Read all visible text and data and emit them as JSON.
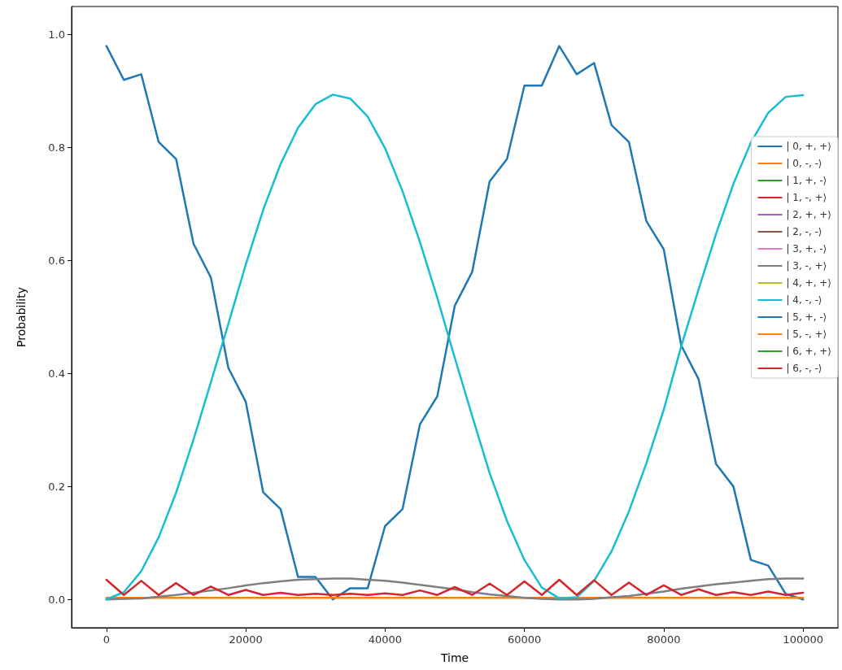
{
  "chart_data": {
    "type": "line",
    "xlabel": "Time",
    "ylabel": "Probability",
    "x": [
      0,
      2500,
      5000,
      7500,
      10000,
      12500,
      15000,
      17500,
      20000,
      22500,
      25000,
      27500,
      30000,
      32500,
      35000,
      37500,
      40000,
      42500,
      45000,
      47500,
      50000,
      52500,
      55000,
      57500,
      60000,
      62500,
      65000,
      67500,
      70000,
      72500,
      75000,
      77500,
      80000,
      82500,
      85000,
      87500,
      90000,
      92500,
      95000,
      97500,
      100000
    ],
    "xlim": [
      -5000,
      105000
    ],
    "xticks": [
      0,
      20000,
      40000,
      60000,
      80000,
      100000
    ],
    "ylim": [
      -0.05,
      1.05
    ],
    "yticks": [
      {
        "value": 0,
        "label": "0.0"
      },
      0.2,
      0.4,
      0.6,
      0.8,
      {
        "value": 1,
        "label": "1.0"
      }
    ],
    "grid": false,
    "legend": "right",
    "marker": "none",
    "line_style": "solid",
    "series": [
      {
        "name": "| 0, +, +⟩",
        "color": "#1f77b4",
        "values": [
          0.98,
          0.92,
          0.93,
          0.81,
          0.78,
          0.63,
          0.57,
          0.41,
          0.35,
          0.19,
          0.16,
          0.04,
          0.04,
          0.0,
          0.02,
          0.02,
          0.13,
          0.16,
          0.31,
          0.36,
          0.52,
          0.58,
          0.74,
          0.78,
          0.91,
          0.91,
          0.98,
          0.93,
          0.95,
          0.84,
          0.81,
          0.67,
          0.62,
          0.45,
          0.39,
          0.24,
          0.2,
          0.07,
          0.06,
          0.01,
          0.0
        ]
      },
      {
        "name": "| 0, -, -⟩",
        "color": "#ff7f0e",
        "values": [
          0.003,
          0.003,
          0.003,
          0.003,
          0.003,
          0.003,
          0.003,
          0.003,
          0.003,
          0.003,
          0.003,
          0.003,
          0.003,
          0.003,
          0.003,
          0.003,
          0.003,
          0.003,
          0.003,
          0.003,
          0.003,
          0.003,
          0.003,
          0.003,
          0.003,
          0.003,
          0.003,
          0.003,
          0.003,
          0.003,
          0.003,
          0.003,
          0.003,
          0.003,
          0.003,
          0.003,
          0.003,
          0.003,
          0.003,
          0.003,
          0.003
        ]
      },
      {
        "name": "| 1, +, -⟩",
        "color": "#2ca02c",
        "values": [
          null,
          null,
          null,
          null,
          null,
          null,
          null,
          null,
          null,
          null,
          null,
          null,
          null,
          null,
          null,
          null,
          null,
          null,
          null,
          null,
          null,
          null,
          null,
          null,
          null,
          null,
          null,
          null,
          null,
          null,
          null,
          null,
          null,
          null,
          null,
          null,
          null,
          null,
          null,
          null,
          null
        ]
      },
      {
        "name": "| 1, -, +⟩",
        "color": "#d62728",
        "values": [
          null,
          null,
          null,
          null,
          null,
          null,
          null,
          null,
          null,
          null,
          null,
          null,
          null,
          null,
          null,
          null,
          null,
          null,
          null,
          null,
          null,
          null,
          null,
          null,
          null,
          null,
          null,
          null,
          null,
          null,
          null,
          null,
          null,
          null,
          null,
          null,
          null,
          null,
          null,
          null,
          null
        ]
      },
      {
        "name": "| 2, +, +⟩",
        "color": "#9467bd",
        "values": [
          null,
          null,
          null,
          null,
          null,
          null,
          null,
          null,
          null,
          null,
          null,
          null,
          null,
          null,
          null,
          null,
          null,
          null,
          null,
          null,
          null,
          null,
          null,
          null,
          null,
          null,
          null,
          null,
          null,
          null,
          null,
          null,
          null,
          null,
          null,
          null,
          null,
          null,
          null,
          null,
          null
        ]
      },
      {
        "name": "| 2, -, -⟩",
        "color": "#8c564b",
        "values": [
          null,
          null,
          null,
          null,
          null,
          null,
          null,
          null,
          null,
          null,
          null,
          null,
          null,
          null,
          null,
          null,
          null,
          null,
          null,
          null,
          null,
          null,
          null,
          null,
          null,
          null,
          null,
          null,
          null,
          null,
          null,
          null,
          null,
          null,
          null,
          null,
          null,
          null,
          null,
          null,
          null
        ]
      },
      {
        "name": "| 3, +, -⟩",
        "color": "#e377c2",
        "values": [
          null,
          null,
          null,
          null,
          null,
          null,
          null,
          null,
          null,
          null,
          null,
          null,
          null,
          null,
          null,
          null,
          null,
          null,
          null,
          null,
          null,
          null,
          null,
          null,
          null,
          null,
          null,
          null,
          null,
          null,
          null,
          null,
          null,
          null,
          null,
          null,
          null,
          null,
          null,
          null,
          null
        ]
      },
      {
        "name": "| 3, -, +⟩",
        "color": "#7f7f7f",
        "values": [
          0.0,
          0.001,
          0.002,
          0.005,
          0.008,
          0.012,
          0.016,
          0.02,
          0.025,
          0.029,
          0.032,
          0.035,
          0.036,
          0.037,
          0.037,
          0.035,
          0.033,
          0.03,
          0.026,
          0.022,
          0.018,
          0.013,
          0.009,
          0.006,
          0.003,
          0.001,
          0.0,
          0.0,
          0.001,
          0.004,
          0.006,
          0.01,
          0.014,
          0.019,
          0.023,
          0.027,
          0.03,
          0.033,
          0.036,
          0.037,
          0.037
        ]
      },
      {
        "name": "| 4, +, +⟩",
        "color": "#bcbd22",
        "values": [
          null,
          null,
          null,
          null,
          null,
          null,
          null,
          null,
          null,
          null,
          null,
          null,
          null,
          null,
          null,
          null,
          null,
          null,
          null,
          null,
          null,
          null,
          null,
          null,
          null,
          null,
          null,
          null,
          null,
          null,
          null,
          null,
          null,
          null,
          null,
          null,
          null,
          null,
          null,
          null,
          null
        ]
      },
      {
        "name": "| 4, -, -⟩",
        "color": "#17becf",
        "values": [
          0.0,
          0.013,
          0.05,
          0.11,
          0.189,
          0.283,
          0.385,
          0.488,
          0.593,
          0.69,
          0.771,
          0.835,
          0.877,
          0.894,
          0.887,
          0.855,
          0.799,
          0.723,
          0.633,
          0.534,
          0.428,
          0.325,
          0.224,
          0.139,
          0.07,
          0.021,
          0.002,
          0.004,
          0.033,
          0.085,
          0.156,
          0.241,
          0.336,
          0.448,
          0.549,
          0.647,
          0.736,
          0.809,
          0.862,
          0.89,
          0.893
        ]
      },
      {
        "name": "| 5, +, -⟩",
        "color": "#1f77b4",
        "values": [
          null,
          null,
          null,
          null,
          null,
          null,
          null,
          null,
          null,
          null,
          null,
          null,
          null,
          null,
          null,
          null,
          null,
          null,
          null,
          null,
          null,
          null,
          null,
          null,
          null,
          null,
          null,
          null,
          null,
          null,
          null,
          null,
          null,
          null,
          null,
          null,
          null,
          null,
          null,
          null,
          null
        ]
      },
      {
        "name": "| 5, -, +⟩",
        "color": "#ff7f0e",
        "values": [
          null,
          null,
          null,
          null,
          null,
          null,
          null,
          null,
          null,
          null,
          null,
          null,
          null,
          null,
          null,
          null,
          null,
          null,
          null,
          null,
          null,
          null,
          null,
          null,
          null,
          null,
          null,
          null,
          null,
          null,
          null,
          null,
          null,
          null,
          null,
          null,
          null,
          null,
          null,
          null,
          null
        ]
      },
      {
        "name": "| 6, +, +⟩",
        "color": "#2ca02c",
        "values": [
          null,
          null,
          null,
          null,
          null,
          null,
          null,
          null,
          null,
          null,
          null,
          null,
          null,
          null,
          null,
          null,
          null,
          null,
          null,
          null,
          null,
          null,
          null,
          null,
          null,
          null,
          null,
          null,
          null,
          null,
          null,
          null,
          null,
          null,
          null,
          null,
          null,
          null,
          null,
          null,
          null
        ]
      },
      {
        "name": "| 6, -, -⟩",
        "color": "#d62728",
        "values": [
          0.035,
          0.008,
          0.033,
          0.008,
          0.029,
          0.008,
          0.023,
          0.008,
          0.017,
          0.008,
          0.012,
          0.008,
          0.01,
          0.008,
          0.01,
          0.008,
          0.011,
          0.008,
          0.016,
          0.008,
          0.022,
          0.008,
          0.028,
          0.008,
          0.032,
          0.008,
          0.035,
          0.008,
          0.034,
          0.008,
          0.03,
          0.008,
          0.025,
          0.008,
          0.018,
          0.008,
          0.013,
          0.008,
          0.014,
          0.008,
          0.012
        ]
      }
    ]
  }
}
